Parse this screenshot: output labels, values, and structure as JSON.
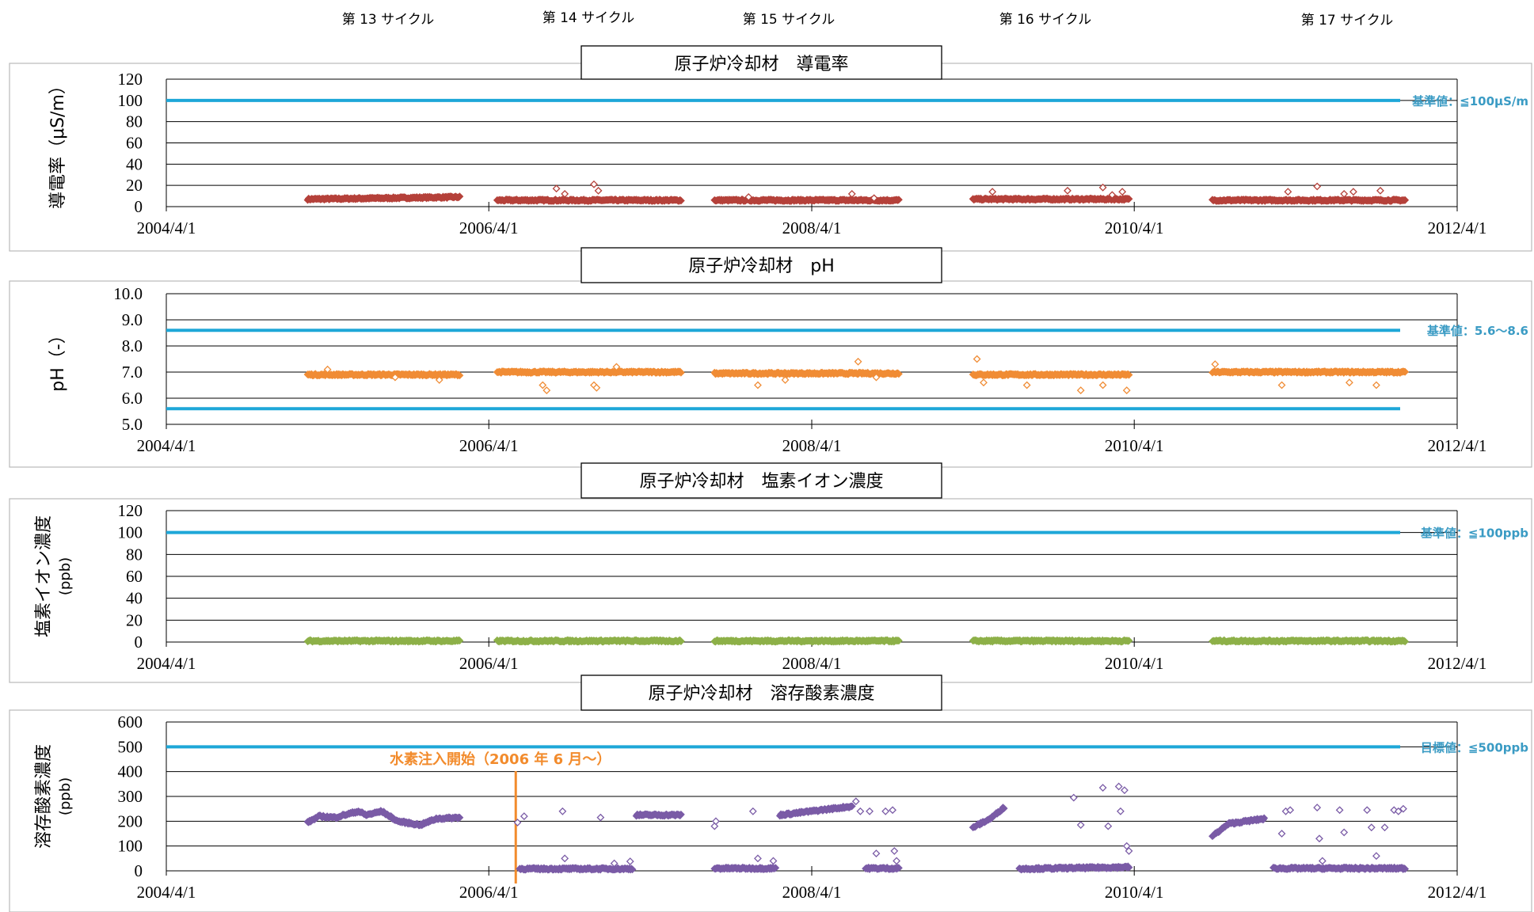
{
  "cycles": [
    "第 13 サイクル",
    "第 14 サイクル",
    "第 15 サイクル",
    "第 16 サイクル",
    "第 17 サイクル"
  ],
  "x_ticks": [
    "2004/4/1",
    "2006/4/1",
    "2008/4/1",
    "2010/4/1",
    "2012/4/1"
  ],
  "colors": {
    "limit_line": "#1ea7d8",
    "limit_text": "#3a9bc4",
    "annotation": "#f28b2c",
    "grid": "#000000"
  },
  "chart_data": [
    {
      "type": "scatter",
      "title": "原子炉冷却材　導電率",
      "ylabel_lines": [
        "導電率（μS/m）"
      ],
      "ylim": [
        0,
        120
      ],
      "yticks": [
        "0",
        "20",
        "40",
        "60",
        "80",
        "100",
        "120"
      ],
      "xlim": [
        "2004/4/1",
        "2012/4/1"
      ],
      "color": "#b5413a",
      "marker": "diamond",
      "limit_lines": [
        {
          "value": 100,
          "label": "基準値：≦100μS/m"
        }
      ],
      "segments": [
        {
          "start": "2005/2/15",
          "end": "2006/1/25",
          "base": 7,
          "end_value": 9,
          "spikes": []
        },
        {
          "start": "2006/4/20",
          "end": "2007/6/10",
          "base": 6,
          "spikes": [
            [
              "2006/9/1",
              17
            ],
            [
              "2006/9/20",
              12
            ],
            [
              "2006/11/25",
              21
            ],
            [
              "2006/12/5",
              15
            ]
          ]
        },
        {
          "start": "2007/8/25",
          "end": "2008/10/15",
          "base": 6,
          "spikes": [
            [
              "2007/11/10",
              9
            ],
            [
              "2008/7/1",
              12
            ],
            [
              "2008/8/20",
              8
            ]
          ]
        },
        {
          "start": "2009/4/1",
          "end": "2010/3/20",
          "base": 7,
          "spikes": [
            [
              "2009/5/15",
              14
            ],
            [
              "2009/11/1",
              15
            ],
            [
              "2010/1/20",
              18
            ],
            [
              "2010/2/10",
              11
            ],
            [
              "2010/3/5",
              14
            ]
          ]
        },
        {
          "start": "2010/9/25",
          "end": "2011/12/5",
          "base": 6,
          "spikes": [
            [
              "2011/3/15",
              14
            ],
            [
              "2011/5/20",
              19
            ],
            [
              "2011/7/20",
              12
            ],
            [
              "2011/8/10",
              14
            ],
            [
              "2011/10/10",
              15
            ]
          ]
        }
      ]
    },
    {
      "type": "scatter",
      "title": "原子炉冷却材　pH",
      "ylabel_lines": [
        "pH（‐）"
      ],
      "ylim": [
        5.0,
        10.0
      ],
      "yticks": [
        "5.0",
        "6.0",
        "7.0",
        "8.0",
        "9.0",
        "10.0"
      ],
      "xlim": [
        "2004/4/1",
        "2012/4/1"
      ],
      "color": "#f08c35",
      "marker": "diamond",
      "limit_lines": [
        {
          "value": 8.6,
          "label": "基準値：5.6～8.6"
        },
        {
          "value": 5.6,
          "label": ""
        }
      ],
      "segments": [
        {
          "start": "2005/2/15",
          "end": "2006/1/25",
          "base": 6.9,
          "spikes": [
            [
              "2005/4/1",
              7.1
            ],
            [
              "2005/9/1",
              6.8
            ],
            [
              "2005/12/10",
              6.7
            ]
          ]
        },
        {
          "start": "2006/4/20",
          "end": "2007/6/10",
          "base": 7.0,
          "spikes": [
            [
              "2006/8/1",
              6.5
            ],
            [
              "2006/8/10",
              6.3
            ],
            [
              "2006/11/25",
              6.5
            ],
            [
              "2006/12/1",
              6.4
            ],
            [
              "2007/1/15",
              7.2
            ]
          ]
        },
        {
          "start": "2007/8/25",
          "end": "2008/10/15",
          "base": 6.95,
          "spikes": [
            [
              "2007/12/1",
              6.5
            ],
            [
              "2008/2/1",
              6.7
            ],
            [
              "2008/7/15",
              7.4
            ],
            [
              "2008/8/25",
              6.8
            ]
          ]
        },
        {
          "start": "2009/4/1",
          "end": "2010/3/20",
          "base": 6.9,
          "spikes": [
            [
              "2009/4/10",
              7.5
            ],
            [
              "2009/4/25",
              6.6
            ],
            [
              "2009/8/1",
              6.5
            ],
            [
              "2009/12/1",
              6.3
            ],
            [
              "2010/1/20",
              6.5
            ],
            [
              "2010/3/15",
              6.3
            ]
          ]
        },
        {
          "start": "2010/9/25",
          "end": "2011/12/5",
          "base": 7.0,
          "spikes": [
            [
              "2010/10/1",
              7.3
            ],
            [
              "2011/3/1",
              6.5
            ],
            [
              "2011/8/1",
              6.6
            ],
            [
              "2011/10/1",
              6.5
            ]
          ]
        }
      ]
    },
    {
      "type": "scatter",
      "title": "原子炉冷却材　塩素イオン濃度",
      "ylabel_lines": [
        "塩素イオン濃度",
        "(ppb)"
      ],
      "ylim": [
        0,
        120
      ],
      "yticks": [
        "0",
        "20",
        "40",
        "60",
        "80",
        "100",
        "120"
      ],
      "xlim": [
        "2004/4/1",
        "2012/4/1"
      ],
      "color": "#8db048",
      "marker": "diamond",
      "limit_lines": [
        {
          "value": 100,
          "label": "基準値：≦100ppb"
        }
      ],
      "segments": [
        {
          "start": "2005/2/15",
          "end": "2006/1/25",
          "base": 1,
          "spikes": []
        },
        {
          "start": "2006/4/20",
          "end": "2007/6/10",
          "base": 1,
          "spikes": []
        },
        {
          "start": "2007/8/25",
          "end": "2008/10/15",
          "base": 1,
          "spikes": []
        },
        {
          "start": "2009/4/1",
          "end": "2010/3/20",
          "base": 1,
          "spikes": []
        },
        {
          "start": "2010/9/25",
          "end": "2011/12/5",
          "base": 1,
          "spikes": []
        }
      ]
    },
    {
      "type": "scatter",
      "title": "原子炉冷却材　溶存酸素濃度",
      "ylabel_lines": [
        "溶存酸素濃度",
        "(ppb)"
      ],
      "ylim": [
        0,
        600
      ],
      "yticks": [
        "0",
        "100",
        "200",
        "300",
        "400",
        "500",
        "600"
      ],
      "xlim": [
        "2004/4/1",
        "2012/4/1"
      ],
      "color": "#7a5ba6",
      "marker": "diamond",
      "limit_lines": [
        {
          "value": 500,
          "label": "目標値：≦500ppb"
        }
      ],
      "annotation": {
        "date": "2006/6/1",
        "label": "水素注入開始（2006 年 6 月～）"
      },
      "segments": [
        {
          "start": "2005/2/15",
          "end": "2006/1/25",
          "curve": [
            [
              "2005/2/15",
              195
            ],
            [
              "2005/4/1",
              220
            ],
            [
              "2005/6/1",
              215
            ],
            [
              "2005/9/1",
              240
            ],
            [
              "2005/10/1",
              225
            ],
            [
              "2005/12/1",
              240
            ],
            [
              "2006/2/1",
              200
            ],
            [
              "2006/5/1",
              185
            ],
            [
              "2006/7/1",
              210
            ],
            [
              "2006/10/1",
              215
            ]
          ],
          "spikes": []
        },
        {
          "start": "2006/6/10",
          "end": "2007/2/20",
          "base": 8,
          "spikes": [
            [
              "2006/6/5",
              195
            ],
            [
              "2006/6/20",
              220
            ],
            [
              "2006/9/15",
              240
            ],
            [
              "2006/9/20",
              50
            ],
            [
              "2006/12/10",
              215
            ],
            [
              "2007/1/10",
              30
            ],
            [
              "2007/2/15",
              38
            ]
          ]
        },
        {
          "start": "2007/3/1",
          "end": "2007/6/10",
          "base": 225,
          "spikes": []
        },
        {
          "start": "2007/8/25",
          "end": "2008/1/10",
          "base": 10,
          "spikes": [
            [
              "2007/8/25",
              180
            ],
            [
              "2007/8/28",
              200
            ],
            [
              "2007/11/20",
              240
            ],
            [
              "2007/12/1",
              50
            ],
            [
              "2008/1/5",
              40
            ]
          ]
        },
        {
          "start": "2008/1/20",
          "end": "2008/7/1",
          "base": 225,
          "end_value": 260,
          "spikes": [
            [
              "2008/7/10",
              280
            ],
            [
              "2008/7/20",
              240
            ]
          ]
        },
        {
          "start": "2008/8/1",
          "end": "2008/10/15",
          "base": 10,
          "spikes": [
            [
              "2008/8/10",
              240
            ],
            [
              "2008/8/25",
              70
            ],
            [
              "2008/9/15",
              240
            ],
            [
              "2008/10/1",
              245
            ],
            [
              "2008/10/5",
              80
            ],
            [
              "2008/10/10",
              40
            ]
          ]
        },
        {
          "start": "2009/4/1",
          "end": "2009/6/10",
          "curve": [
            [
              "2009/4/1",
              175
            ],
            [
              "2009/5/10",
              210
            ],
            [
              "2009/6/10",
              255
            ]
          ],
          "spikes": []
        },
        {
          "start": "2009/7/15",
          "end": "2010/3/20",
          "base": 8,
          "end_value": 15,
          "spikes": [
            [
              "2009/11/15",
              295
            ],
            [
              "2009/12/1",
              185
            ],
            [
              "2010/1/20",
              335
            ],
            [
              "2010/2/1",
              180
            ],
            [
              "2010/2/25",
              340
            ],
            [
              "2010/3/1",
              240
            ],
            [
              "2010/3/10",
              325
            ],
            [
              "2010/3/15",
              100
            ],
            [
              "2010/3/20",
              80
            ]
          ]
        },
        {
          "start": "2010/9/25",
          "end": "2011/1/20",
          "curve": [
            [
              "2010/9/25",
              140
            ],
            [
              "2010/11/1",
              190
            ],
            [
              "2011/1/20",
              210
            ]
          ],
          "spikes": []
        },
        {
          "start": "2011/2/10",
          "end": "2011/12/5",
          "base": 10,
          "spikes": [
            [
              "2011/3/10",
              240
            ],
            [
              "2011/3/20",
              245
            ],
            [
              "2011/3/1",
              150
            ],
            [
              "2011/5/20",
              255
            ],
            [
              "2011/5/25",
              130
            ],
            [
              "2011/7/10",
              245
            ],
            [
              "2011/7/20",
              155
            ],
            [
              "2011/9/10",
              245
            ],
            [
              "2011/9/20",
              175
            ],
            [
              "2011/10/20",
              175
            ],
            [
              "2011/11/10",
              245
            ],
            [
              "2011/11/20",
              240
            ],
            [
              "2011/12/1",
              250
            ],
            [
              "2011/6/1",
              40
            ],
            [
              "2011/10/1",
              60
            ]
          ]
        }
      ]
    }
  ]
}
